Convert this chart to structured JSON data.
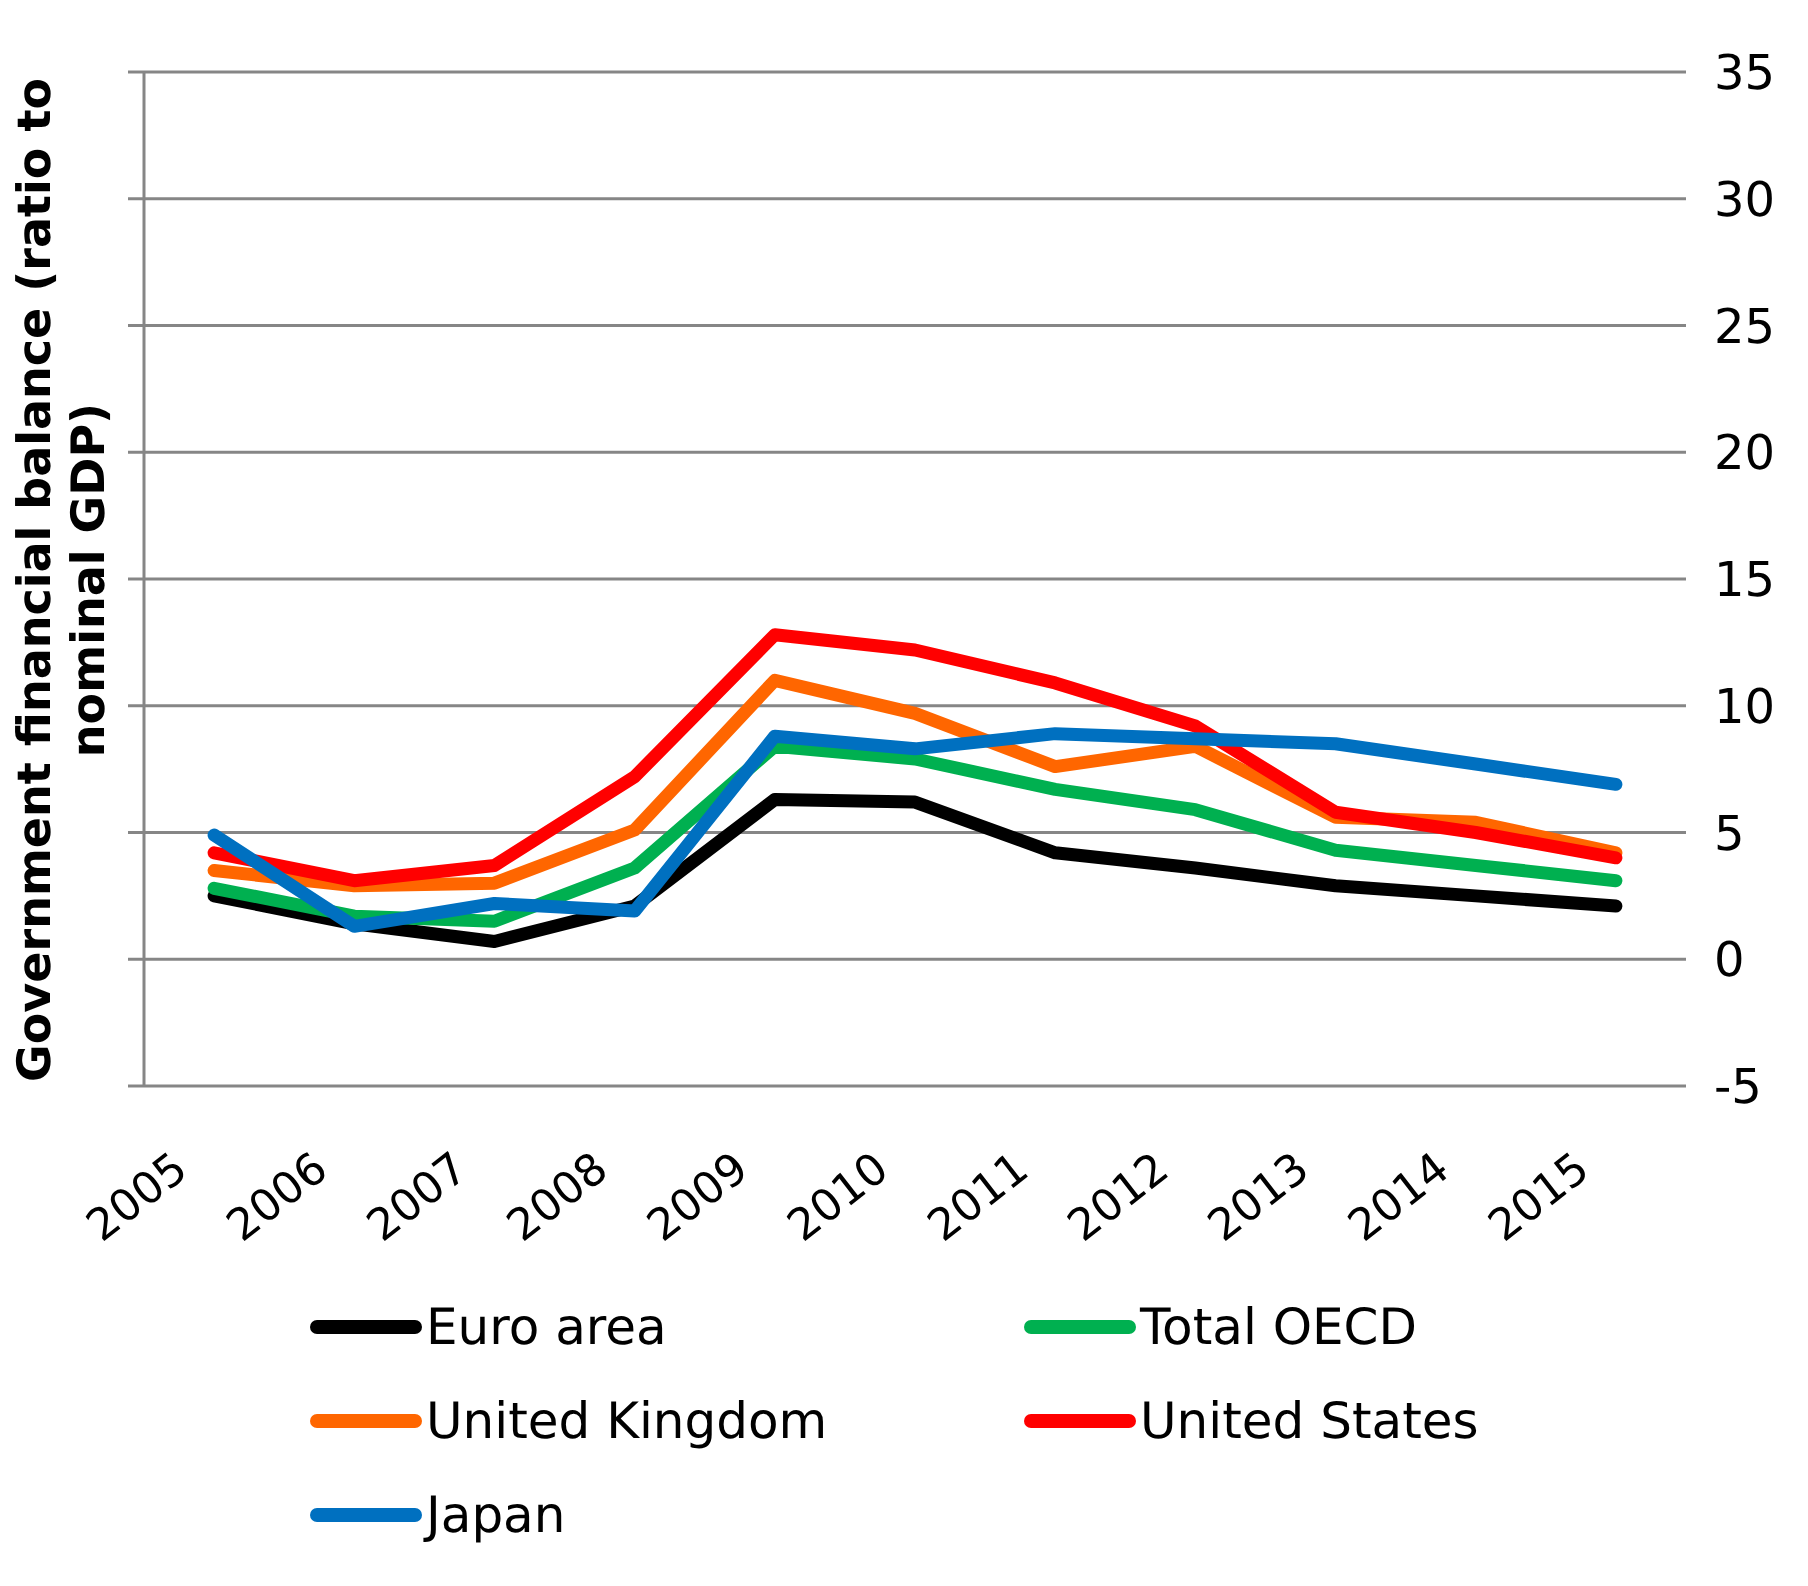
{
  "chart_data": {
    "type": "line",
    "ylabel": "Government financial balance (ratio to nominal GDP)",
    "categories": [
      "2005",
      "2006",
      "2007",
      "2008",
      "2009",
      "2010",
      "2011",
      "2012",
      "2013",
      "2014",
      "2015"
    ],
    "series": [
      {
        "name": "Euro area",
        "color": "#000000",
        "values": [
          2.5,
          1.4,
          0.7,
          2.1,
          6.3,
          6.2,
          4.2,
          3.6,
          2.9,
          2.5,
          2.1
        ]
      },
      {
        "name": "Total OECD",
        "color": "#00b050",
        "values": [
          2.8,
          1.7,
          1.5,
          3.6,
          8.4,
          7.9,
          6.7,
          5.9,
          4.3,
          3.7,
          3.1
        ]
      },
      {
        "name": "United Kingdom",
        "color": "#ff6600",
        "values": [
          3.5,
          2.9,
          3.0,
          5.1,
          11.0,
          9.7,
          7.6,
          8.4,
          5.6,
          5.4,
          4.2
        ]
      },
      {
        "name": "United States",
        "color": "#ff0000",
        "values": [
          4.2,
          3.1,
          3.7,
          7.2,
          12.8,
          12.2,
          10.9,
          9.2,
          5.8,
          5.0,
          4.0
        ]
      },
      {
        "name": "Japan",
        "color": "#0070c0",
        "values": [
          4.9,
          1.3,
          2.2,
          1.9,
          8.8,
          8.3,
          8.9,
          8.7,
          8.5,
          7.7,
          6.9
        ]
      }
    ],
    "ylim": [
      -5,
      35
    ],
    "yticks": [
      -5,
      0,
      5,
      10,
      15,
      20,
      25,
      30,
      35
    ],
    "grid": "y",
    "legend": "bottom",
    "line_style": "solid"
  }
}
